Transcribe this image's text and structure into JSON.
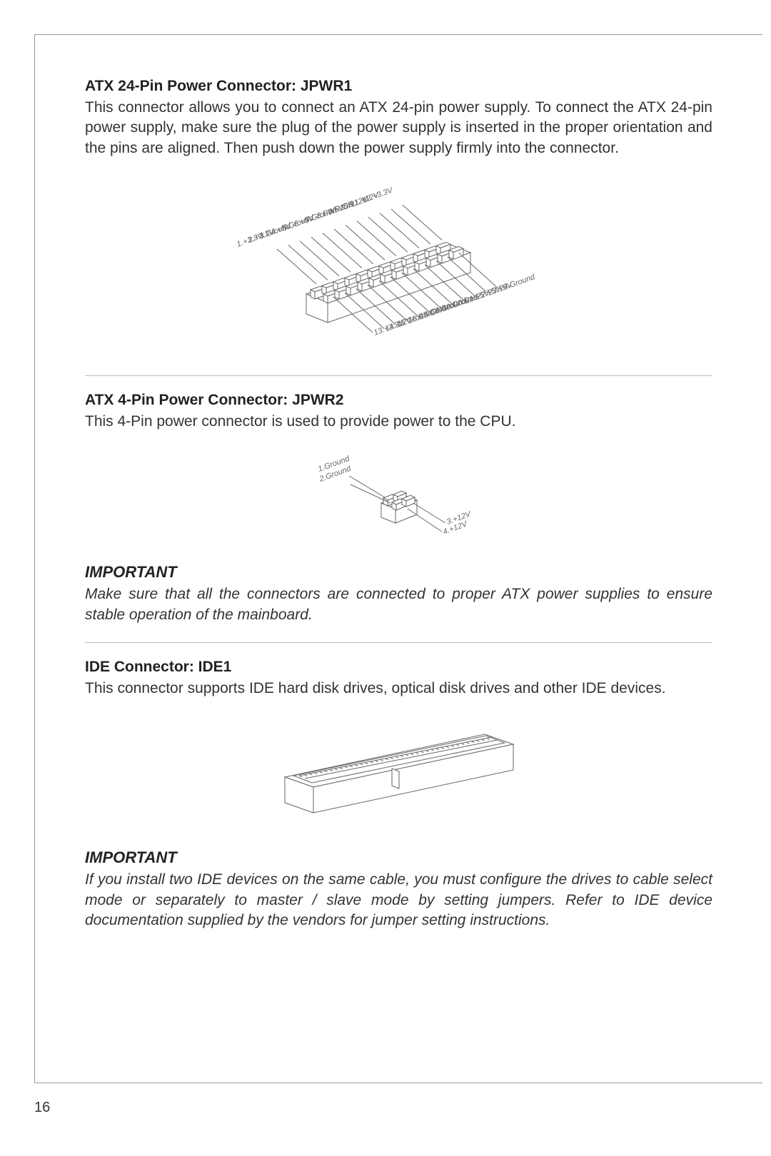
{
  "page_number": "16",
  "sections": {
    "atx24": {
      "title": "ATX 24-Pin Power Connector: JPWR1",
      "body": "This connector allows you to connect an ATX 24-pin power supply. To connect the ATX 24-pin power supply, make sure the plug of the power supply is inserted in the proper orientation and the pins are aligned. Then push down the power supply firmly into the connector.",
      "pins_left": [
        "12.+3.3V",
        "11.+12V",
        "10.+12V",
        "9.5VSB",
        "8.PWR OK",
        "7.Ground",
        "6.+5V",
        "5.Ground",
        "4.+5V",
        "3.Ground",
        "2.+3.3V",
        "1.+3.3V"
      ],
      "pins_right": [
        "24.Ground",
        "23.+5V",
        "22.+5V",
        "21.+5V",
        "20.Res",
        "19.Ground",
        "18.Ground",
        "17.Ground",
        "16.PS-ON#",
        "15.Ground",
        "14.-12V",
        "13.+3.3V"
      ]
    },
    "atx4": {
      "title": "ATX 4-Pin Power Connector: JPWR2",
      "body": "This 4-Pin power connector is used to provide power to the CPU.",
      "pins_left": [
        "1.Ground",
        "2.Ground"
      ],
      "pins_right": [
        "3.+12V",
        "4.+12V"
      ]
    },
    "important1": {
      "title": "IMPORTANT",
      "body": "Make sure that all the connectors are connected to proper ATX power supplies to ensure stable operation of the mainboard."
    },
    "ide": {
      "title": "IDE Connector: IDE1",
      "body": "This connector supports IDE hard disk drives, optical disk drives and other IDE devices."
    },
    "important2": {
      "title": "IMPORTANT",
      "body": "If you install two IDE devices on the same cable, you must configure the drives to cable select mode or separately to master / slave mode by setting jumpers. Refer to IDE device documentation supplied by the vendors for jumper setting instructions."
    }
  },
  "style": {
    "text_color": "#333333",
    "heading_color": "#222222",
    "divider_color": "#bbbbbb",
    "diagram_stroke": "#666666",
    "label_color": "#666666",
    "background": "#ffffff",
    "body_fontsize": 21,
    "heading_fontsize": 21,
    "important_fontsize": 22
  }
}
